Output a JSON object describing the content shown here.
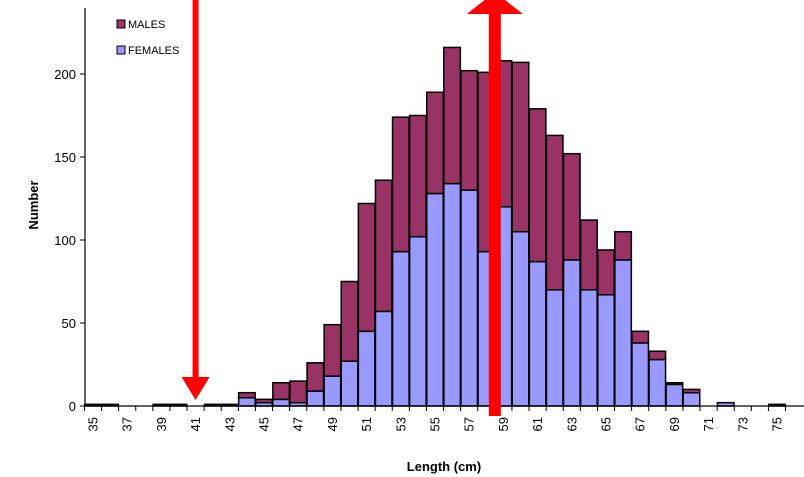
{
  "chart_data": {
    "type": "bar",
    "stacked": true,
    "title": "",
    "xlabel": "Length (cm)",
    "ylabel": "Number",
    "ylim": [
      0,
      250
    ],
    "yticks": [
      0,
      50,
      100,
      150,
      200
    ],
    "x": [
      35,
      36,
      37,
      38,
      39,
      40,
      41,
      42,
      43,
      44,
      45,
      46,
      47,
      48,
      49,
      50,
      51,
      52,
      53,
      54,
      55,
      56,
      57,
      58,
      59,
      60,
      61,
      62,
      63,
      64,
      65,
      66,
      67,
      68,
      69,
      70,
      71,
      72,
      73,
      74,
      75
    ],
    "x_tick_labels": [
      "35",
      "37",
      "39",
      "41",
      "43",
      "45",
      "47",
      "49",
      "51",
      "53",
      "55",
      "57",
      "59",
      "61",
      "63",
      "65",
      "67",
      "69",
      "71",
      "73",
      "75"
    ],
    "legend": {
      "position": "top-left"
    },
    "series": [
      {
        "name": "FEMALES",
        "color": "#9999ff",
        "values": [
          1,
          1,
          0,
          0,
          1,
          1,
          0,
          1,
          1,
          5,
          2,
          4,
          2,
          9,
          18,
          27,
          45,
          57,
          93,
          102,
          128,
          134,
          130,
          93,
          120,
          105,
          87,
          70,
          88,
          70,
          67,
          88,
          38,
          28,
          13,
          8,
          0,
          2,
          0,
          0,
          1
        ]
      },
      {
        "name": "MALES",
        "color": "#993366",
        "values": [
          0,
          0,
          0,
          0,
          0,
          0,
          0,
          0,
          0,
          3,
          2,
          10,
          13,
          17,
          31,
          48,
          77,
          79,
          81,
          73,
          61,
          82,
          72,
          108,
          88,
          102,
          92,
          93,
          64,
          42,
          27,
          17,
          7,
          5,
          1,
          2,
          0,
          0,
          0,
          0,
          0
        ]
      }
    ],
    "annotations": [
      {
        "type": "arrow-down",
        "x": 41,
        "color": "#ff0000"
      },
      {
        "type": "arrow-up",
        "x": 58.5,
        "color": "#ff0000"
      }
    ]
  }
}
